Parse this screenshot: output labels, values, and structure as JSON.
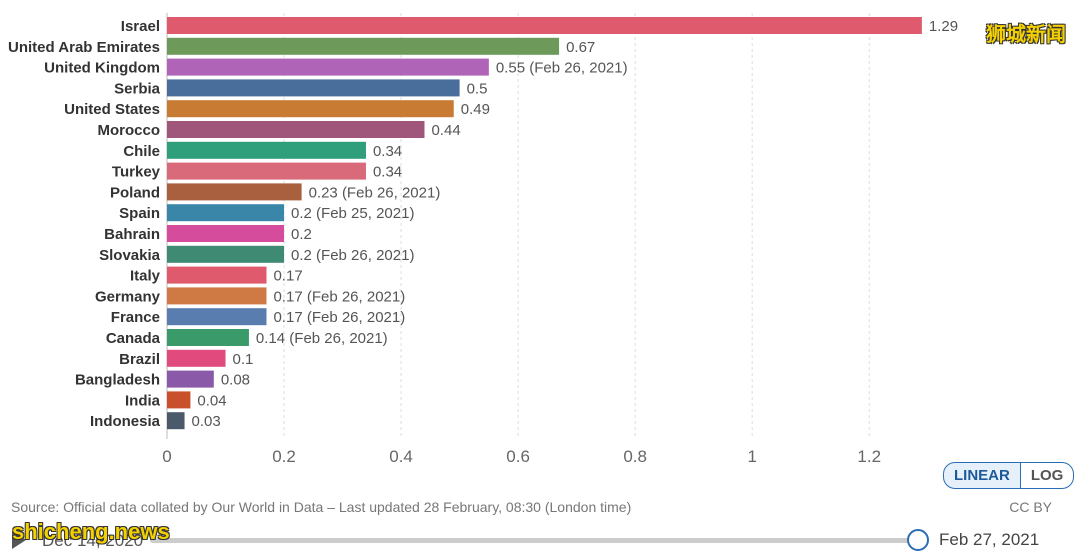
{
  "chart_data": {
    "type": "bar",
    "orientation": "horizontal",
    "categories": [
      "Israel",
      "United Arab Emirates",
      "United Kingdom",
      "Serbia",
      "United States",
      "Morocco",
      "Chile",
      "Turkey",
      "Poland",
      "Spain",
      "Bahrain",
      "Slovakia",
      "Italy",
      "Germany",
      "France",
      "Canada",
      "Brazil",
      "Bangladesh",
      "India",
      "Indonesia"
    ],
    "values": [
      1.29,
      0.67,
      0.55,
      0.5,
      0.49,
      0.44,
      0.34,
      0.34,
      0.23,
      0.2,
      0.2,
      0.2,
      0.17,
      0.17,
      0.17,
      0.14,
      0.1,
      0.08,
      0.04,
      0.03
    ],
    "value_labels": [
      "1.29",
      "0.67",
      "0.55 (Feb 26, 2021)",
      "0.5",
      "0.49",
      "0.44",
      "0.34",
      "0.34",
      "0.23 (Feb 26, 2021)",
      "0.2 (Feb 25, 2021)",
      "0.2",
      "0.2 (Feb 26, 2021)",
      "0.17",
      "0.17 (Feb 26, 2021)",
      "0.17 (Feb 26, 2021)",
      "0.14 (Feb 26, 2021)",
      "0.1",
      "0.08",
      "0.04",
      "0.03"
    ],
    "colors": [
      "#e05a6d",
      "#6d9a5a",
      "#b064b8",
      "#4a6e9c",
      "#c87b32",
      "#a0557a",
      "#2f9e7a",
      "#d96a7a",
      "#a8603e",
      "#3a86a8",
      "#d64c9c",
      "#3f8a72",
      "#e05a6d",
      "#cf7a45",
      "#5a7db0",
      "#3a9a6a",
      "#e04a7d",
      "#8a5aa8",
      "#c8502a",
      "#4a5a6a"
    ],
    "xlim": [
      0,
      1.35
    ],
    "x_ticks": [
      "0",
      "0.2",
      "0.4",
      "0.6",
      "0.8",
      "1",
      "1.2"
    ],
    "x_tick_values": [
      0,
      0.2,
      0.4,
      0.6,
      0.8,
      1,
      1.2
    ],
    "grid": "vertical dashed"
  },
  "controls": {
    "scale_linear": "LINEAR",
    "scale_log": "LOG"
  },
  "footer": {
    "source": "Source: Official data collated by Our World in Data – Last updated 28 February, 08:30 (London time)",
    "license": "CC BY"
  },
  "timeline": {
    "start_date": "Dec 14, 2020",
    "end_date": "Feb 27, 2021"
  },
  "watermarks": {
    "top": "狮城新闻",
    "bottom": "shicheng.news"
  }
}
